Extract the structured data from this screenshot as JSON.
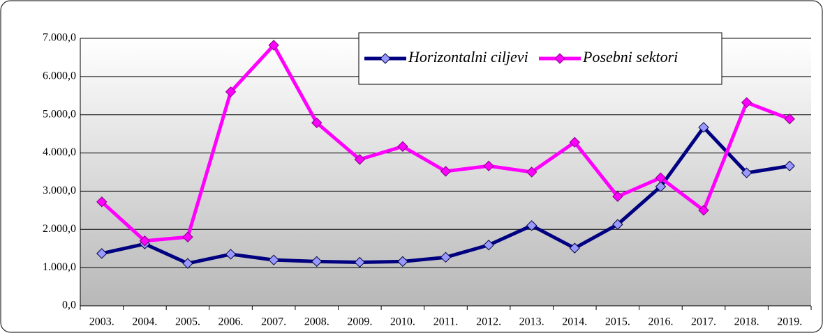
{
  "chart_data": {
    "type": "line",
    "categories": [
      "2003.",
      "2004.",
      "2005.",
      "2006.",
      "2007.",
      "2008.",
      "2009.",
      "2010.",
      "2011.",
      "2012.",
      "2013.",
      "2014.",
      "2015.",
      "2016.",
      "2017.",
      "2018.",
      "2019."
    ],
    "series": [
      {
        "name": "Horizontalni ciljevi",
        "color": "#000080",
        "marker_color": "#9999ff",
        "values": [
          1370,
          1620,
          1110,
          1350,
          1200,
          1160,
          1140,
          1160,
          1270,
          1590,
          2100,
          1510,
          2130,
          3120,
          4670,
          3480,
          3660
        ]
      },
      {
        "name": "Posebni sektori",
        "color": "#ff00ff",
        "marker_color": "#ff00ff",
        "values": [
          2720,
          1700,
          1800,
          5600,
          6820,
          4790,
          3830,
          4170,
          3520,
          3660,
          3500,
          4280,
          2860,
          3350,
          2500,
          5320,
          4890
        ]
      }
    ],
    "ylim": [
      0,
      7000
    ],
    "yticks": [
      {
        "value": 0,
        "label": "0,0"
      },
      {
        "value": 1000,
        "label": "1.000,0"
      },
      {
        "value": 2000,
        "label": "2.000,0"
      },
      {
        "value": 3000,
        "label": "3.000,0"
      },
      {
        "value": 4000,
        "label": "4.000,0"
      },
      {
        "value": 5000,
        "label": "5.000,0"
      },
      {
        "value": 6000,
        "label": "6.000,0"
      },
      {
        "value": 7000,
        "label": "7.000,0"
      }
    ],
    "grid": true,
    "legend": "top-right"
  }
}
